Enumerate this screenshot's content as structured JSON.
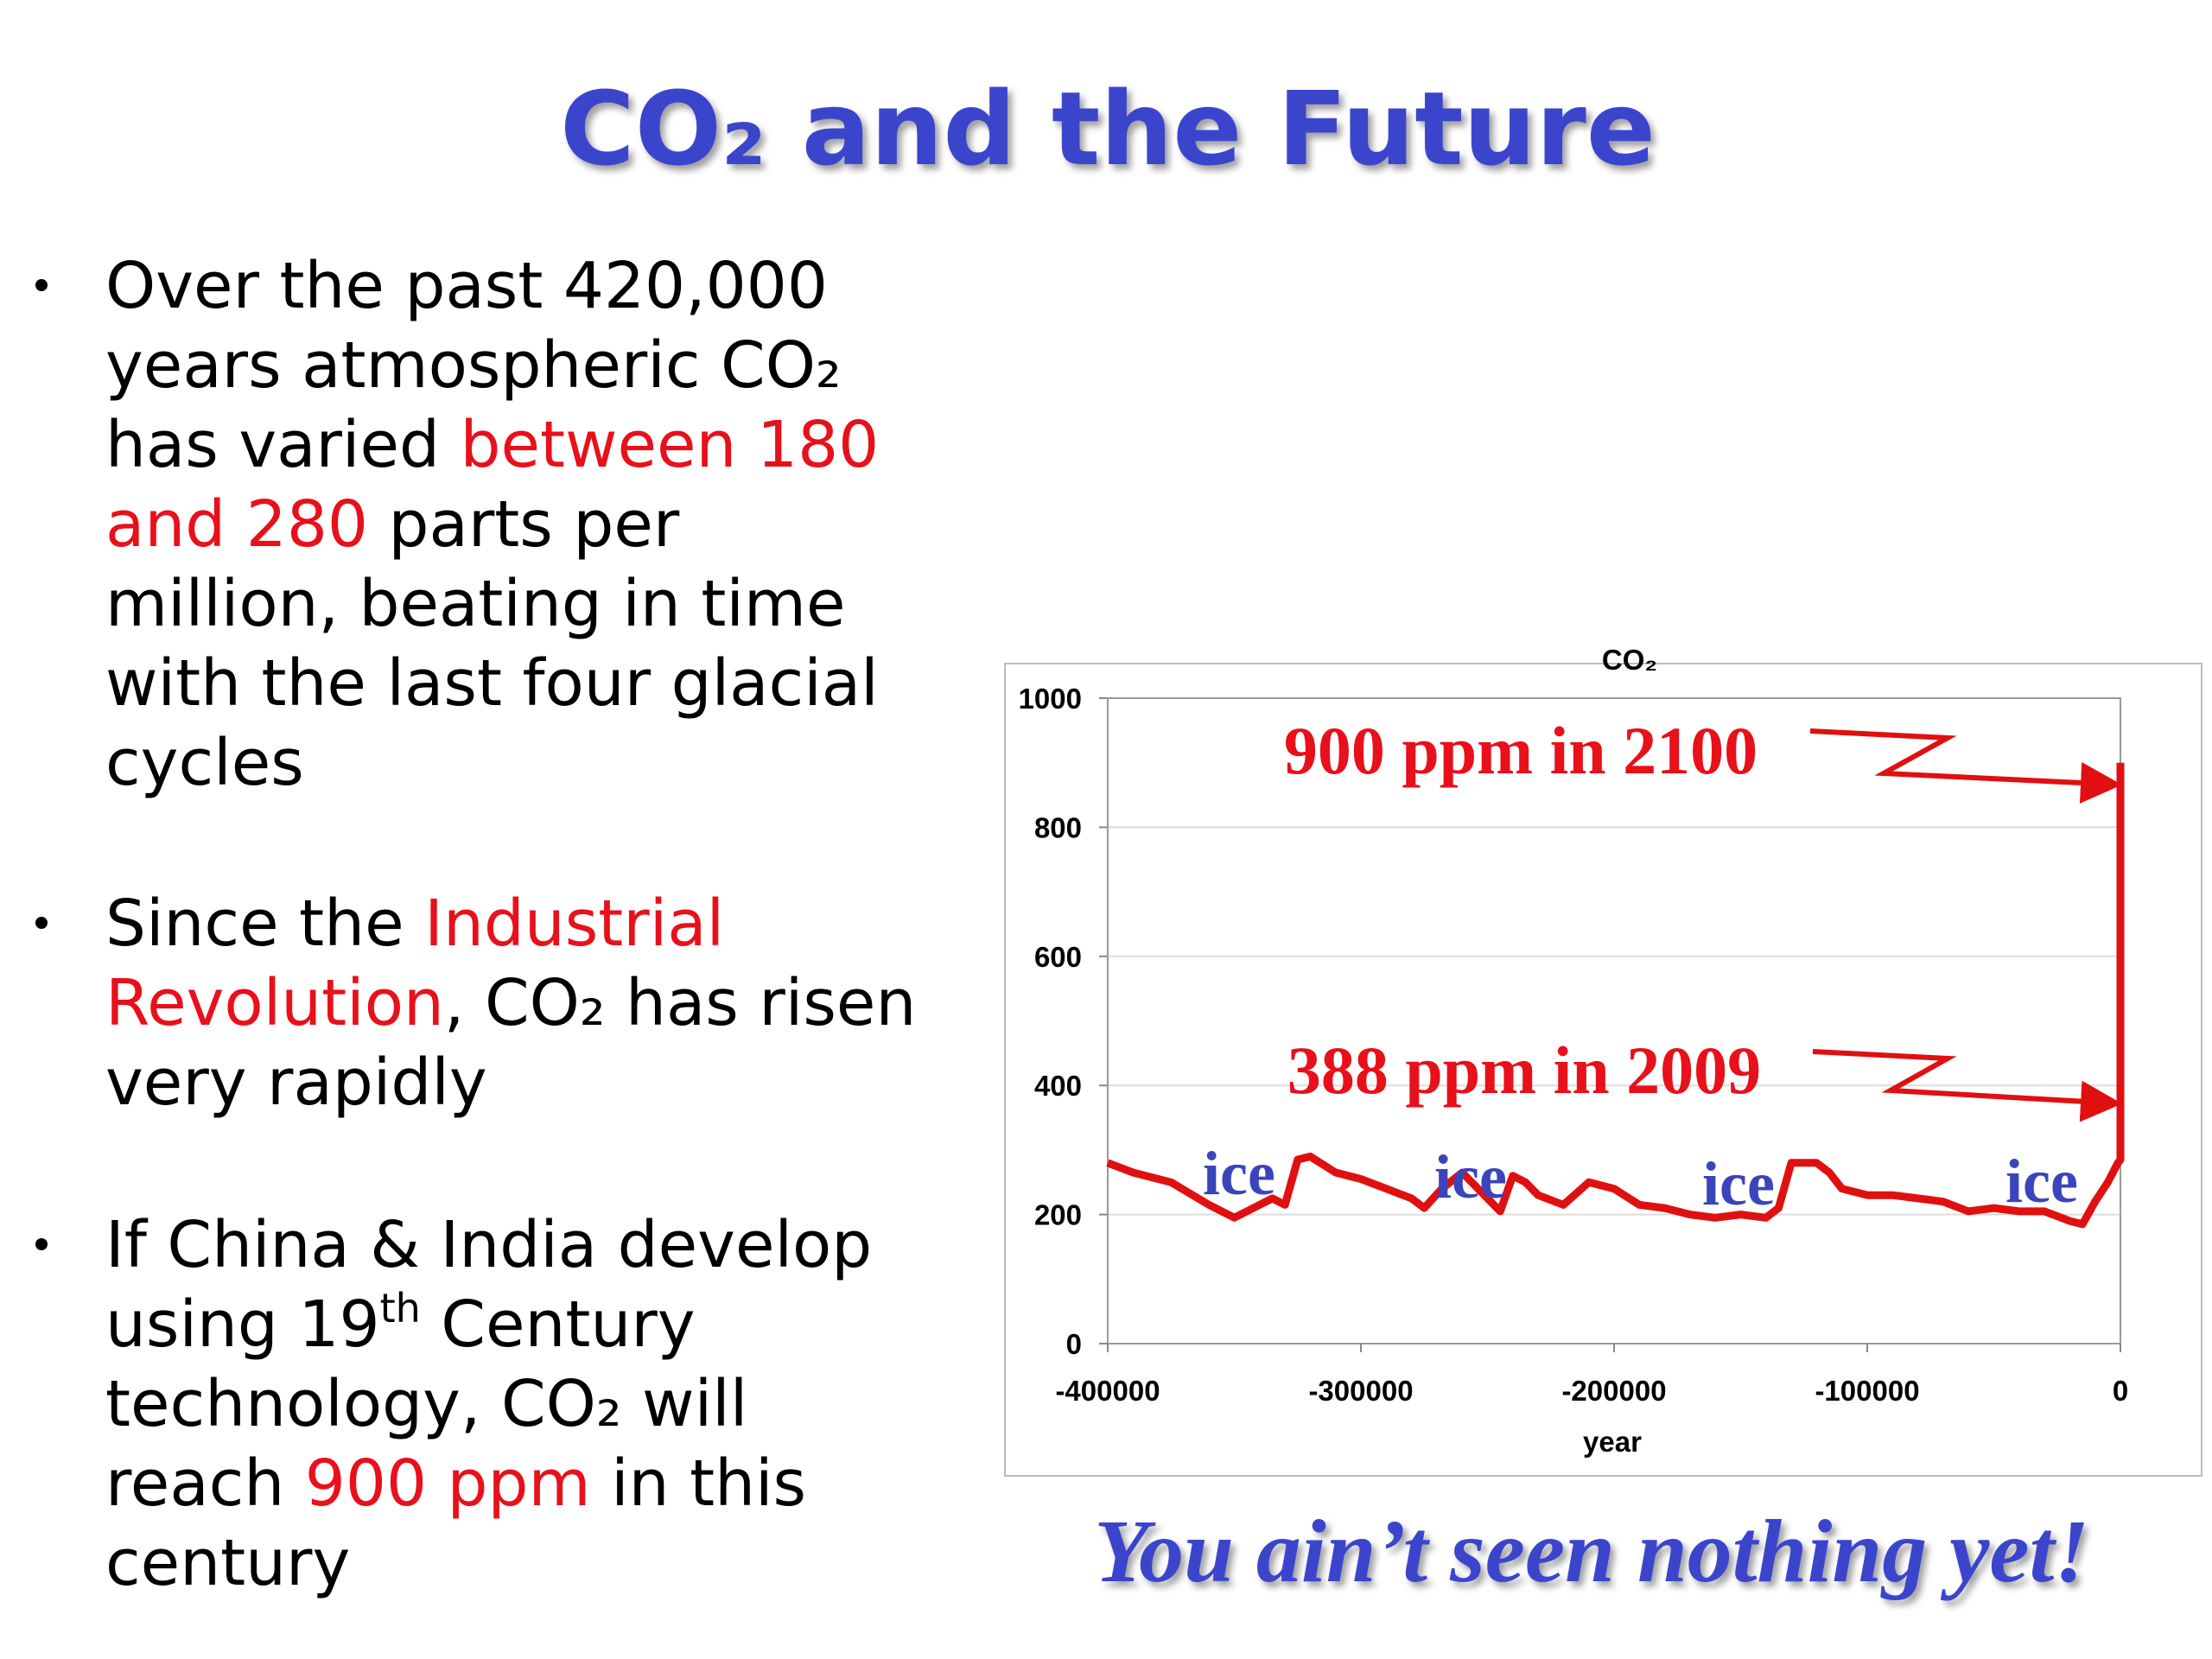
{
  "slide_title": "CO₂ and the Future",
  "highlight_color": "#e8101a",
  "bullets": [
    {
      "lines": [
        [
          {
            "text": "Over the past 420,000"
          }
        ],
        [
          {
            "text": "years atmospheric CO₂"
          }
        ],
        [
          {
            "text": "has varied "
          },
          {
            "text": "between 180",
            "style": "highlight"
          }
        ],
        [
          {
            "text": "and 280",
            "style": "highlight"
          },
          {
            "text": " parts per"
          }
        ],
        [
          {
            "text": "million, beating in time"
          }
        ],
        [
          {
            "text": "with the last four glacial"
          }
        ],
        [
          {
            "text": "cycles"
          }
        ]
      ]
    },
    {
      "lines": [
        [
          {
            "text": "Since the "
          },
          {
            "text": "Industrial",
            "style": "highlight"
          }
        ],
        [
          {
            "text": "Revolution",
            "style": "highlight"
          },
          {
            "text": ", CO₂ has risen"
          }
        ],
        [
          {
            "text": "very rapidly"
          }
        ]
      ]
    },
    {
      "lines": [
        [
          {
            "text": "If China & India develop"
          }
        ],
        [
          {
            "text": "using 19"
          },
          {
            "text": "th",
            "style": "sup"
          },
          {
            "text": " Century"
          }
        ],
        [
          {
            "text": "technology, CO₂ will"
          }
        ],
        [
          {
            "text": "reach "
          },
          {
            "text": "900 ppm",
            "style": "highlight"
          },
          {
            "text": " in this"
          }
        ],
        [
          {
            "text": "century"
          }
        ]
      ]
    }
  ],
  "tagline": "You ain’t seen nothing yet!",
  "chart_data": {
    "type": "line",
    "title": "CO₂",
    "x_label": "year",
    "x": [
      -400000,
      -390000,
      -375000,
      -360000,
      -350000,
      -340000,
      -335000,
      -330000,
      -325000,
      -320000,
      -310000,
      -300000,
      -290000,
      -280000,
      -275000,
      -268000,
      -260000,
      -250000,
      -245000,
      -240000,
      -235000,
      -230000,
      -220000,
      -210000,
      -200000,
      -190000,
      -180000,
      -170000,
      -160000,
      -150000,
      -140000,
      -135000,
      -130000,
      -120000,
      -115000,
      -110000,
      -100000,
      -90000,
      -80000,
      -70000,
      -60000,
      -50000,
      -40000,
      -30000,
      -20000,
      -15000,
      -10000,
      -5000,
      -1000,
      0,
      0,
      0
    ],
    "series": [
      {
        "name": "CO₂",
        "color": "#e01010",
        "values": [
          280,
          265,
          250,
          215,
          195,
          215,
          225,
          215,
          285,
          290,
          265,
          255,
          240,
          225,
          210,
          240,
          265,
          225,
          205,
          260,
          250,
          230,
          215,
          250,
          240,
          215,
          210,
          200,
          195,
          200,
          195,
          210,
          280,
          280,
          265,
          240,
          230,
          230,
          225,
          220,
          205,
          210,
          205,
          205,
          190,
          185,
          220,
          250,
          280,
          285,
          388,
          900
        ]
      }
    ],
    "xlim": [
      -400000,
      0
    ],
    "xticks": [
      -400000,
      -300000,
      -200000,
      -100000,
      0
    ],
    "ylim": [
      0,
      1000
    ],
    "yticks": [
      0,
      200,
      400,
      600,
      800,
      1000
    ],
    "grid": true,
    "annotations": [
      "900 ppm in 2100",
      "388 ppm in 2009",
      "ice",
      "ice",
      "ice",
      "ice"
    ]
  }
}
